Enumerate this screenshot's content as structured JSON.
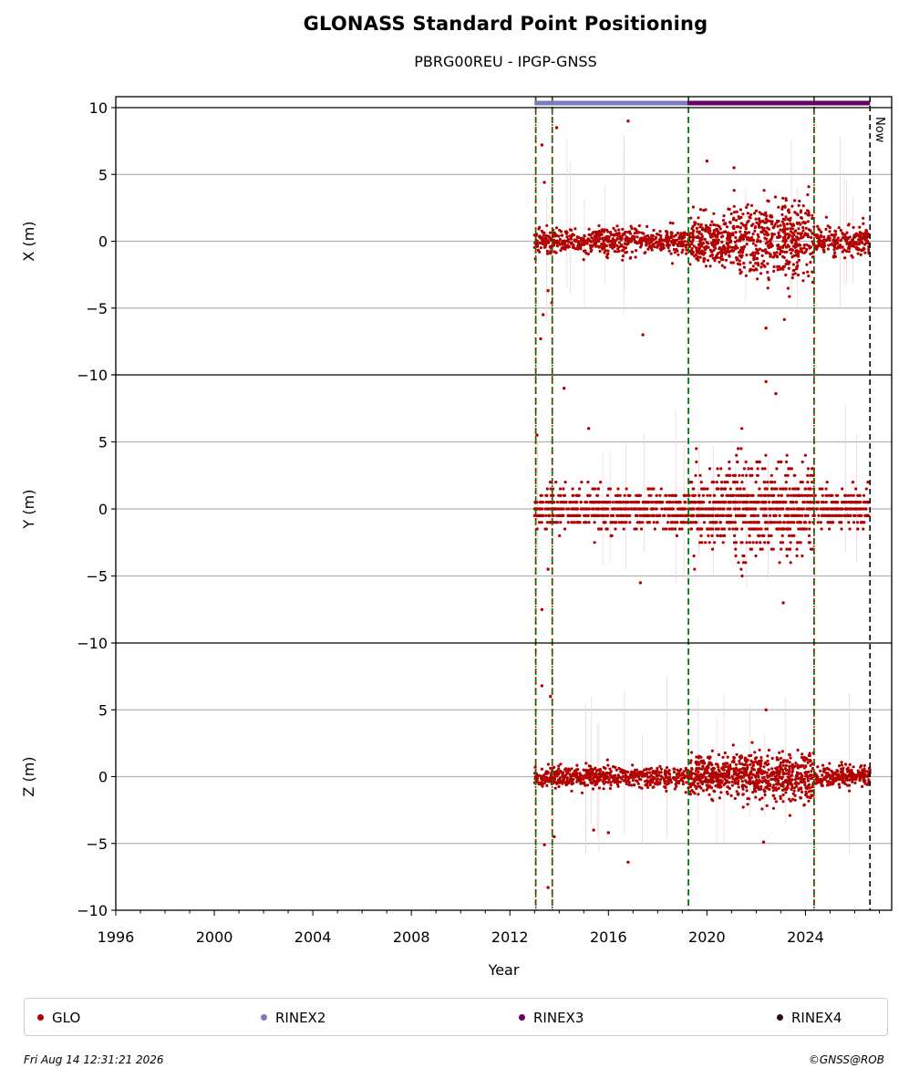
{
  "chart_data": {
    "type": "scatter",
    "title": "GLONASS Standard Point Positioning",
    "subtitle": "PBRG00REU - IPGP-GNSS",
    "xlabel": "Year",
    "xlim": [
      1996,
      2027.5
    ],
    "x_ticks": [
      "1996",
      "2000",
      "2004",
      "2008",
      "2012",
      "2016",
      "2020",
      "2024"
    ],
    "now_label": "Now",
    "now_year": 2026.62,
    "vertical_markers": [
      2013.05,
      2013.72,
      2019.25,
      2024.35
    ],
    "panels": [
      {
        "ylabel": "X (m)",
        "ylim": [
          -10,
          10
        ],
        "y_ticks": [
          "10",
          "5",
          "0",
          "−5",
          "−10"
        ],
        "spread": [
          0.9,
          0.9,
          1.7,
          2.4,
          1.0
        ],
        "outliers": [
          [
            2013.3,
            7.2
          ],
          [
            2013.4,
            4.4
          ],
          [
            2013.55,
            -3.7
          ],
          [
            2013.7,
            -4.6
          ],
          [
            2013.9,
            8.5
          ],
          [
            2013.25,
            -7.3
          ],
          [
            2013.35,
            -5.5
          ],
          [
            2016.8,
            9.0
          ],
          [
            2017.4,
            -7.0
          ],
          [
            2020.0,
            6.0
          ],
          [
            2021.1,
            5.5
          ],
          [
            2022.4,
            -6.5
          ]
        ]
      },
      {
        "ylabel": "Y (m)",
        "ylim": [
          -10,
          10
        ],
        "y_ticks": [
          "5",
          "0",
          "−5",
          "−10"
        ],
        "spread": [
          1.3,
          1.4,
          2.2,
          3.0,
          1.3
        ],
        "outliers": [
          [
            2013.3,
            -7.5
          ],
          [
            2013.55,
            -4.5
          ],
          [
            2014.2,
            9.0
          ],
          [
            2015.2,
            6.0
          ],
          [
            2017.3,
            -5.5
          ],
          [
            2022.4,
            9.5
          ],
          [
            2022.8,
            8.6
          ],
          [
            2023.1,
            -7.0
          ],
          [
            2013.1,
            5.5
          ]
        ]
      },
      {
        "ylabel": "Z (m)",
        "ylim": [
          -10,
          10
        ],
        "y_ticks": [
          "5",
          "0",
          "−5",
          "−10"
        ],
        "spread": [
          0.7,
          0.7,
          1.3,
          1.6,
          0.7
        ],
        "outliers": [
          [
            2013.3,
            6.8
          ],
          [
            2013.4,
            -5.1
          ],
          [
            2013.55,
            -8.3
          ],
          [
            2013.65,
            6.0
          ],
          [
            2016.8,
            -6.4
          ],
          [
            2015.4,
            -4.0
          ],
          [
            2016.0,
            -4.2
          ],
          [
            2022.4,
            5.0
          ],
          [
            2022.3,
            -4.9
          ],
          [
            2013.8,
            -4.5
          ]
        ]
      }
    ],
    "series": [
      {
        "name": "GLO",
        "color": "#b30000"
      },
      {
        "name": "RINEX2",
        "color": "#7b7bbf",
        "span": [
          2013.0,
          2019.2
        ]
      },
      {
        "name": "RINEX3",
        "color": "#6a0066",
        "span": [
          2019.2,
          2026.62
        ]
      },
      {
        "name": "RINEX4",
        "color": "#2b0a1e"
      }
    ]
  },
  "footer": {
    "date": "Fri Aug 14 12:31:21 2026",
    "copyright": "©GNSS@ROB"
  }
}
